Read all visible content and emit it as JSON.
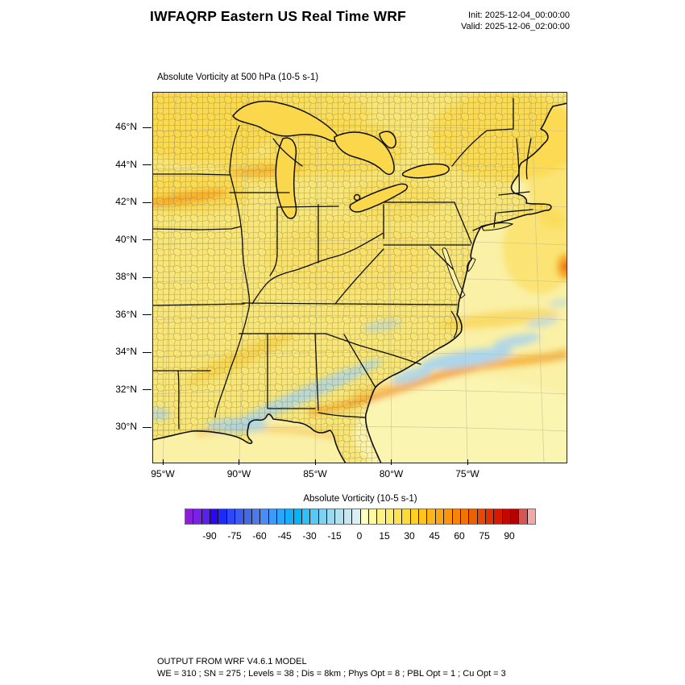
{
  "header": {
    "title": "IWFAQRP Eastern US Real Time WRF",
    "init": "Init: 2025-12-04_00:00:00",
    "valid": "Valid: 2025-12-06_02:00:00"
  },
  "plot": {
    "title": "Absolute Vorticity at 500 hPa   (10-5 s-1)"
  },
  "axes": {
    "y_ticks": [
      "46°N",
      "44°N",
      "42°N",
      "40°N",
      "38°N",
      "36°N",
      "34°N",
      "32°N",
      "30°N"
    ],
    "x_ticks": [
      "95°W",
      "90°W",
      "85°W",
      "80°W",
      "75°W"
    ]
  },
  "colorbar": {
    "label": "Absolute Vorticity  (10-5 s-1)",
    "tick_values": [
      -90,
      -75,
      -60,
      -45,
      -30,
      -15,
      0,
      15,
      30,
      45,
      60,
      75,
      90
    ],
    "min": -105,
    "max": 105,
    "step": 5,
    "colors": [
      "#8C1ED8",
      "#7722E6",
      "#5A20EE",
      "#2B06F2",
      "#1C2BFA",
      "#2E47F8",
      "#3A5CF2",
      "#4169E8",
      "#4A7AEE",
      "#4A8CF2",
      "#3D9AF7",
      "#2BA6FA",
      "#14AFFA",
      "#00B6F8",
      "#2EC0F6",
      "#58C9F2",
      "#7DD2F0",
      "#98DAF0",
      "#AFE1F1",
      "#C4E8F3",
      "#D9EFF6",
      "#FFFFC2",
      "#FFF9A0",
      "#FFF385",
      "#FFEC6A",
      "#FFE44F",
      "#FFDB38",
      "#FFD022",
      "#FFC41C",
      "#FFB517",
      "#FFA512",
      "#FB950C",
      "#F68506",
      "#F27300",
      "#EE5F00",
      "#E94800",
      "#E23000",
      "#D81800",
      "#C70600",
      "#B40000",
      "#D45555",
      "#F0A8A8"
    ]
  },
  "footer": {
    "line1": "OUTPUT FROM WRF V4.6.1 MODEL",
    "line2": "WE = 310 ; SN = 275 ; Levels = 38 ; Dis = 8km ; Phys Opt = 8 ; PBL Opt = 1 ; Cu Opt = 3"
  },
  "map_colors": {
    "base_land": "#F8E678",
    "base_ocean": "#FAF0A6",
    "pale_ocean": "#FBF5B4",
    "gold": "#FBD84B",
    "deep_gold": "#F7C52E",
    "orange": "#F49C1C",
    "red_spot": "#E03A10",
    "light_blue": "#A8D4EE",
    "county_line": "#7A6F33",
    "border": "#0F0F0F",
    "graticule": "#C9BD8E"
  },
  "chart_data": {
    "type": "heatmap",
    "title": "Absolute Vorticity at 500 hPa (10-5 s-1)",
    "x_ticks": [
      "95°W",
      "90°W",
      "85°W",
      "80°W",
      "75°W"
    ],
    "y_ticks": [
      "46°N",
      "44°N",
      "42°N",
      "40°N",
      "38°N",
      "36°N",
      "34°N",
      "32°N",
      "30°N"
    ],
    "colorbar_label": "Absolute Vorticity  (10-5 s-1)",
    "colorbar_ticks": [
      -90,
      -75,
      -60,
      -45,
      -30,
      -15,
      0,
      15,
      30,
      45,
      60,
      75,
      90
    ],
    "value_range": [
      -105,
      105
    ],
    "contour_interval": 5,
    "field_features": [
      {
        "region": "most of the land domain",
        "value_approx": "5 to 20 (pale yellow to gold)"
      },
      {
        "region": "upper Midwest (WI, IA/NE) and New England bands",
        "value_approx": "20 to 30 (gold/orange streaks)"
      },
      {
        "region": "Gulf Stream streak offshore of the Carolinas running northeast",
        "value_approx": "30 to 45 (orange)"
      },
      {
        "region": "light blue patches off NC/SC coast and a SW-NE streak across LA/MS/AL/GA near 31-33N",
        "value_approx": "-5 to -15"
      },
      {
        "region": "small maximum at the right map edge near 38N",
        "value_approx": "60+ (red)"
      },
      {
        "region": "southeast open Atlantic background",
        "value_approx": "0 to 10 (pale yellow)"
      }
    ]
  }
}
